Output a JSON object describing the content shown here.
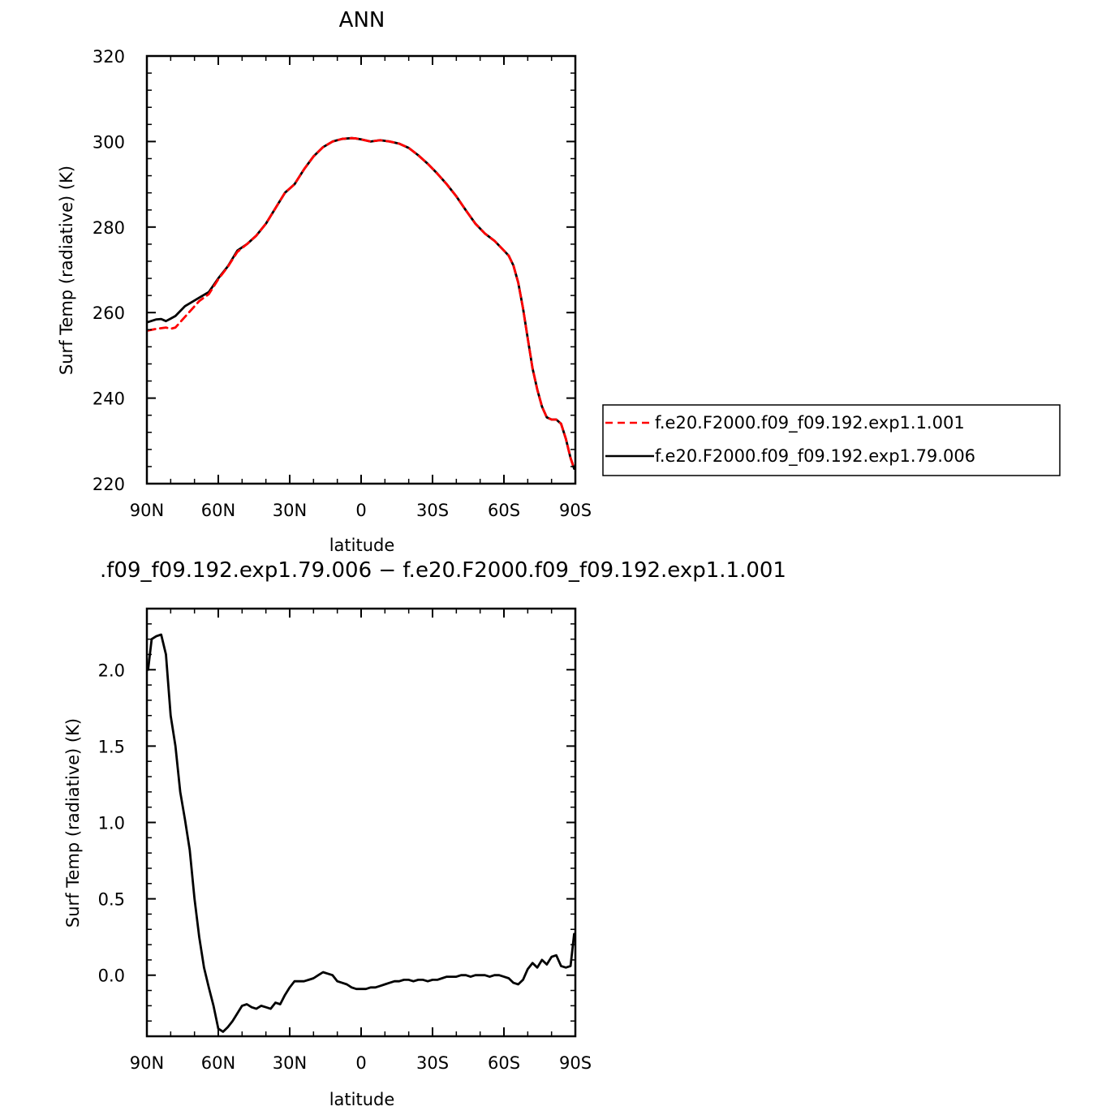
{
  "chart_data": [
    {
      "type": "line",
      "title": "ANN",
      "xlabel": "latitude",
      "ylabel": "Surf Temp (radiative) (K)",
      "xlim": [
        90,
        -90
      ],
      "ylim": [
        220,
        320
      ],
      "xticks": [
        90,
        60,
        30,
        0,
        -30,
        -60,
        -90
      ],
      "xtick_labels": [
        "90N",
        "60N",
        "30N",
        "0",
        "30S",
        "60S",
        "90S"
      ],
      "yticks": [
        220,
        240,
        260,
        280,
        300,
        320
      ],
      "ytick_labels": [
        "220",
        "240",
        "260",
        "280",
        "300",
        "320"
      ],
      "legend_position": "right",
      "grid": false,
      "series": [
        {
          "name": "f.e20.F2000.f09_f09.192.exp1.1.001",
          "color": "#ff0000",
          "dash": "dashed",
          "x": [
            89.5,
            86,
            82,
            80,
            78,
            74,
            68,
            64,
            60,
            56,
            52,
            48,
            44,
            40,
            36,
            32,
            28,
            24,
            20,
            16,
            12,
            8,
            4,
            2,
            0,
            -4,
            -8,
            -12,
            -16,
            -20,
            -24,
            -28,
            -32,
            -36,
            -40,
            -44,
            -48,
            -52,
            -56,
            -60,
            -62,
            -64,
            -66,
            -68,
            -70,
            -72,
            -74,
            -76,
            -78,
            -80,
            -82,
            -84,
            -86,
            -88,
            -89.5
          ],
          "y": [
            255.8,
            256.2,
            256.5,
            256.2,
            256.5,
            259,
            262.7,
            264.3,
            267.8,
            270.7,
            274.2,
            276,
            278,
            280.8,
            284.4,
            288,
            290,
            293.5,
            296.5,
            298.7,
            300.0,
            300.6,
            300.8,
            300.7,
            300.5,
            300.0,
            300.3,
            300.0,
            299.5,
            298.5,
            296.8,
            294.8,
            292.5,
            290.0,
            287.2,
            283.9,
            280.8,
            278.5,
            276.8,
            274.5,
            273.3,
            271.0,
            267.0,
            261.0,
            254.0,
            247.0,
            242.0,
            238.0,
            235.5,
            235.0,
            235.0,
            234.0,
            230.5,
            226.0,
            223.5
          ]
        },
        {
          "name": "f.e20.F2000.f09_f09.192.exp1.79.006",
          "color": "#000000",
          "dash": "solid",
          "x": [
            89.5,
            86,
            84,
            82,
            80,
            78,
            74,
            68,
            64,
            60,
            56,
            52,
            48,
            44,
            40,
            36,
            32,
            28,
            24,
            20,
            16,
            12,
            8,
            4,
            2,
            0,
            -4,
            -8,
            -12,
            -16,
            -20,
            -24,
            -28,
            -32,
            -36,
            -40,
            -44,
            -48,
            -52,
            -56,
            -60,
            -62,
            -64,
            -66,
            -68,
            -70,
            -72,
            -74,
            -76,
            -78,
            -80,
            -82,
            -84,
            -86,
            -88,
            -89.5
          ],
          "y": [
            257.8,
            258.4,
            258.5,
            258.0,
            258.6,
            259.2,
            261.5,
            263.5,
            264.8,
            268.0,
            270.8,
            274.5,
            276.0,
            278.0,
            280.8,
            284.4,
            288.0,
            290.0,
            293.5,
            296.5,
            298.7,
            300.0,
            300.6,
            300.8,
            300.7,
            300.5,
            300.0,
            300.3,
            300.0,
            299.5,
            298.5,
            296.8,
            294.8,
            292.5,
            290.0,
            287.2,
            283.9,
            280.8,
            278.5,
            276.8,
            274.5,
            273.3,
            271.0,
            267.0,
            261.0,
            254.0,
            247.0,
            242.0,
            238.0,
            235.5,
            235.0,
            235.0,
            234.0,
            230.5,
            226.0,
            223.5
          ]
        }
      ]
    },
    {
      "type": "line",
      "title": ".f09_f09.192.exp1.79.006 − f.e20.F2000.f09_f09.192.exp1.1.001",
      "xlabel": "latitude",
      "ylabel": "Surf Temp (radiative) (K)",
      "xlim": [
        90,
        -90
      ],
      "ylim": [
        -0.4,
        2.4
      ],
      "xticks": [
        90,
        60,
        30,
        0,
        -30,
        -60,
        -90
      ],
      "xtick_labels": [
        "90N",
        "60N",
        "30N",
        "0",
        "30S",
        "60S",
        "90S"
      ],
      "yticks": [
        0.0,
        0.5,
        1.0,
        1.5,
        2.0
      ],
      "ytick_labels": [
        "0.0",
        "0.5",
        "1.0",
        "1.5",
        "2.0"
      ],
      "grid": false,
      "series": [
        {
          "color": "#000000",
          "dash": "solid",
          "x": [
            89.5,
            88,
            86,
            84,
            82,
            80,
            78,
            76,
            74,
            72,
            70,
            68,
            66,
            64,
            62,
            60,
            58,
            56,
            54,
            52,
            50,
            48,
            46,
            44,
            42,
            40,
            38,
            36,
            34,
            32,
            30,
            28,
            26,
            24,
            22,
            20,
            18,
            16,
            14,
            12,
            10,
            8,
            6,
            4,
            2,
            0,
            -2,
            -4,
            -6,
            -8,
            -10,
            -12,
            -14,
            -16,
            -18,
            -20,
            -22,
            -24,
            -26,
            -28,
            -30,
            -32,
            -34,
            -36,
            -38,
            -40,
            -42,
            -44,
            -46,
            -48,
            -50,
            -52,
            -54,
            -56,
            -58,
            -60,
            -62,
            -64,
            -66,
            -68,
            -70,
            -72,
            -74,
            -76,
            -78,
            -80,
            -82,
            -84,
            -86,
            -88,
            -89.5
          ],
          "y": [
            2.0,
            2.2,
            2.22,
            2.23,
            2.1,
            1.7,
            1.5,
            1.2,
            1.02,
            0.82,
            0.5,
            0.25,
            0.05,
            -0.08,
            -0.2,
            -0.35,
            -0.37,
            -0.34,
            -0.3,
            -0.25,
            -0.2,
            -0.19,
            -0.21,
            -0.22,
            -0.2,
            -0.21,
            -0.22,
            -0.18,
            -0.19,
            -0.13,
            -0.08,
            -0.04,
            -0.04,
            -0.04,
            -0.03,
            -0.02,
            0.0,
            0.02,
            0.01,
            0.0,
            -0.04,
            -0.05,
            -0.06,
            -0.08,
            -0.09,
            -0.09,
            -0.09,
            -0.08,
            -0.08,
            -0.07,
            -0.06,
            -0.05,
            -0.04,
            -0.04,
            -0.03,
            -0.03,
            -0.04,
            -0.03,
            -0.03,
            -0.04,
            -0.03,
            -0.03,
            -0.02,
            -0.01,
            -0.01,
            -0.01,
            0.0,
            0.0,
            -0.01,
            0.0,
            0.0,
            0.0,
            -0.01,
            0.0,
            0.0,
            -0.01,
            -0.02,
            -0.05,
            -0.06,
            -0.03,
            0.04,
            0.08,
            0.05,
            0.1,
            0.07,
            0.12,
            0.13,
            0.06,
            0.05,
            0.06,
            0.27
          ]
        }
      ]
    }
  ]
}
